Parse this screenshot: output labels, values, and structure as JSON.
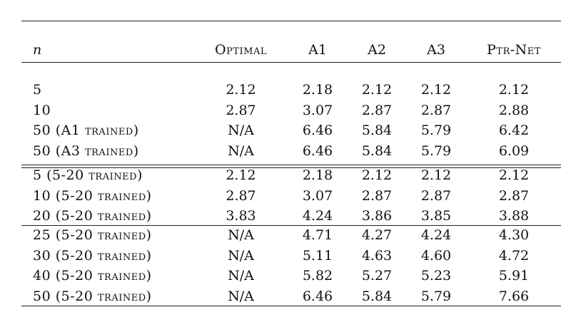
{
  "table": {
    "header": [
      "n",
      "Optimal",
      "A1",
      "A2",
      "A3",
      "Ptr-Net"
    ],
    "groups": [
      {
        "rows": [
          [
            "5",
            "2.12",
            "2.18",
            "2.12",
            "2.12",
            "2.12"
          ],
          [
            "10",
            "2.87",
            "3.07",
            "2.87",
            "2.87",
            "2.88"
          ],
          [
            "50 (A1 trained)",
            "N/A",
            "6.46",
            "5.84",
            "5.79",
            "6.42"
          ],
          [
            "50 (A3 trained)",
            "N/A",
            "6.46",
            "5.84",
            "5.79",
            "6.09"
          ]
        ]
      },
      {
        "rows": [
          [
            "5 (5-20 trained)",
            "2.12",
            "2.18",
            "2.12",
            "2.12",
            "2.12"
          ],
          [
            "10 (5-20 trained)",
            "2.87",
            "3.07",
            "2.87",
            "2.87",
            "2.87"
          ],
          [
            "20 (5-20 trained)",
            "3.83",
            "4.24",
            "3.86",
            "3.85",
            "3.88"
          ]
        ]
      },
      {
        "rows": [
          [
            "25 (5-20 trained)",
            "N/A",
            "4.71",
            "4.27",
            "4.24",
            "4.30"
          ],
          [
            "30 (5-20 trained)",
            "N/A",
            "5.11",
            "4.63",
            "4.60",
            "4.72"
          ],
          [
            "40 (5-20 trained)",
            "N/A",
            "5.82",
            "5.27",
            "5.23",
            "5.91"
          ],
          [
            "50 (5-20 trained)",
            "N/A",
            "6.46",
            "5.84",
            "5.79",
            "7.66"
          ]
        ]
      }
    ]
  }
}
